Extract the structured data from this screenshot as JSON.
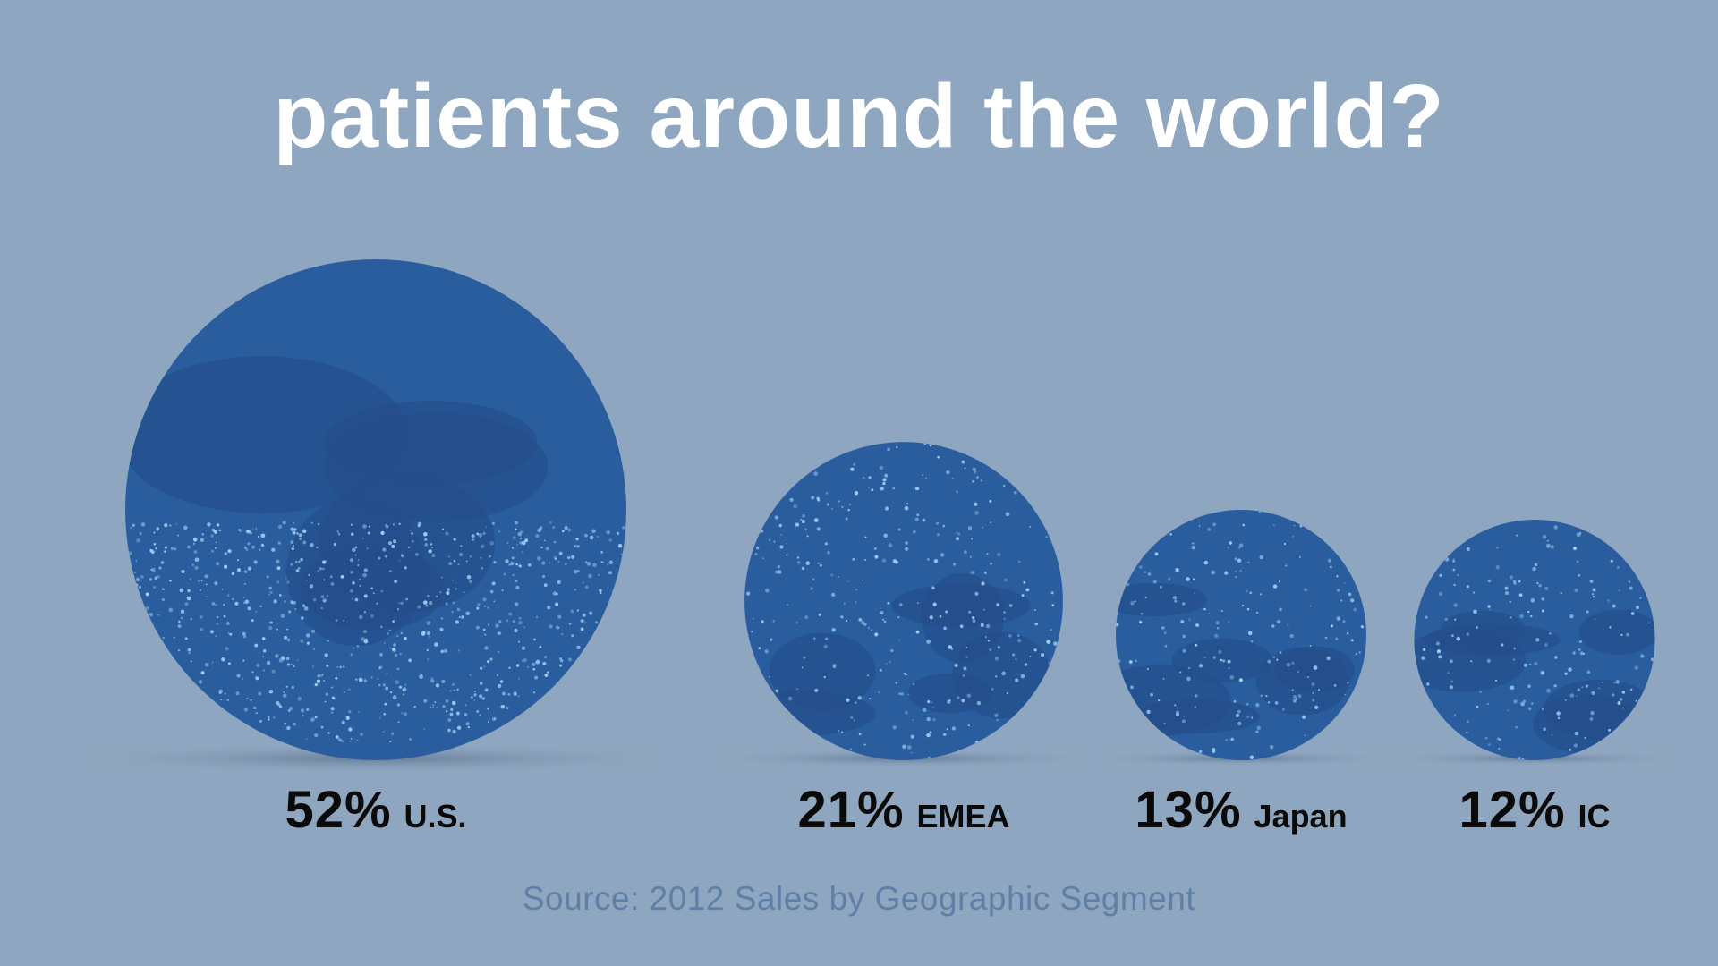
{
  "title": "patients around the world?",
  "source": "Source: 2012 Sales by Geographic Segment",
  "colors": {
    "background": "#8ea6bf",
    "bubble_fill": "#2a5d9e",
    "bubble_land": "#234f8a",
    "city_lights": "#9fd3f5",
    "label_text": "#0a0a0a",
    "source_text": "#5f7fa6",
    "title_text": "#ffffff"
  },
  "chart_data": {
    "type": "bubble",
    "title": "patients around the world?",
    "xlabel": "",
    "ylabel": "",
    "categories": [
      "U.S.",
      "EMEA",
      "Japan",
      "IC"
    ],
    "values": [
      52,
      21,
      13,
      12
    ],
    "value_labels": [
      "52%",
      "21%",
      "13%",
      "12%"
    ],
    "units": "%",
    "bubble_images": [
      "us-night-map",
      "europe-night-map",
      "japan-night-map",
      "world-globe-map"
    ],
    "grid": false,
    "legend": "none"
  }
}
